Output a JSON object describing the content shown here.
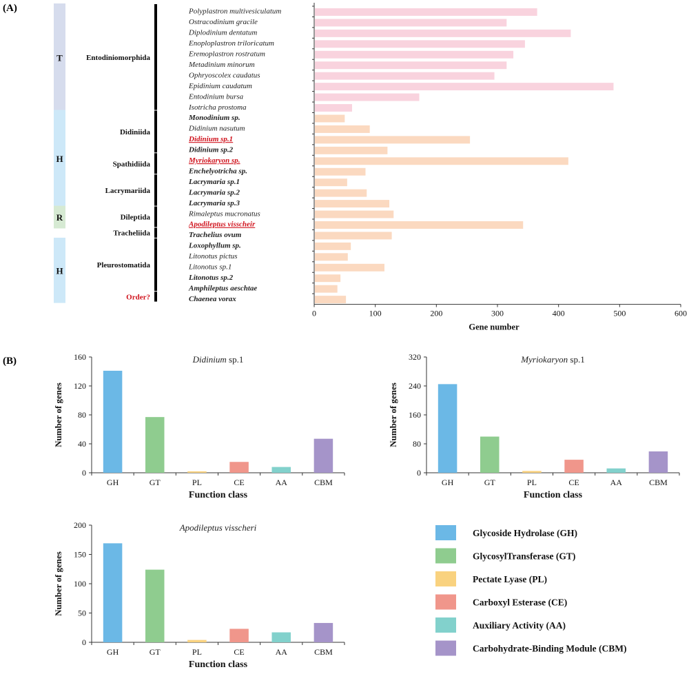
{
  "panel_labels": [
    "(A)",
    "(B)"
  ],
  "colors": {
    "axis": "#333333",
    "bar_rank_T": "#f9d3de",
    "bar_rank_H": "#fbd9c0",
    "bracket": "#000000",
    "highlight_red": "#d0121c",
    "group_T": "#d6dced",
    "group_H": "#cde8f8",
    "group_R": "#d6ead3"
  },
  "chart_data": [
    {
      "type": "bar",
      "orientation": "horizontal",
      "xlabel": "Gene number",
      "xlim": [
        0,
        600
      ],
      "xticks": [
        "0",
        "100",
        "200",
        "300",
        "400",
        "500",
        "600"
      ],
      "categories": [
        {
          "name": "Polyplastron multivesiculatum",
          "bold": false,
          "italic_parts": [
            "Polyplastron multivesiculatum"
          ],
          "red": false
        },
        {
          "name": "Ostracodinium gracile",
          "bold": false,
          "red": false
        },
        {
          "name": "Diplodinium dentatum",
          "bold": false,
          "red": false
        },
        {
          "name": "Enoploplastron triloricatum",
          "bold": false,
          "red": false
        },
        {
          "name": "Eremoplastron rostratum",
          "bold": false,
          "red": false
        },
        {
          "name": "Metadinium minorum",
          "bold": false,
          "red": false
        },
        {
          "name": "Ophryoscolex caudatus",
          "bold": false,
          "red": false
        },
        {
          "name": "Epidinium caudatum",
          "bold": false,
          "red": false
        },
        {
          "name": "Entodinium bursa",
          "bold": false,
          "red": false
        },
        {
          "name": "Isotricha prostoma",
          "bold": false,
          "red": false
        },
        {
          "name": "Monodinium sp.",
          "bold": true,
          "red": false
        },
        {
          "name": "Didinium nasutum",
          "bold": false,
          "red": false
        },
        {
          "name": "Didinium sp.1",
          "bold": true,
          "red": true
        },
        {
          "name": "Didinium sp.2",
          "bold": true,
          "red": false
        },
        {
          "name": "Myriokaryon sp.",
          "bold": true,
          "red": true
        },
        {
          "name": "Enchelyotricha sp.",
          "bold": true,
          "red": false
        },
        {
          "name": "Lacrymaria sp.1",
          "bold": true,
          "red": false
        },
        {
          "name": "Lacrymaria sp.2",
          "bold": true,
          "red": false
        },
        {
          "name": "Lacrymaria sp.3",
          "bold": true,
          "red": false
        },
        {
          "name": "Rimaleptus mucronatus",
          "bold": false,
          "red": false
        },
        {
          "name": "Apodileptus visscheir",
          "bold": true,
          "red": true
        },
        {
          "name": "Trachelius ovum",
          "bold": true,
          "red": false
        },
        {
          "name": "Loxophyllum sp.",
          "bold": true,
          "red": false
        },
        {
          "name": "Litonotus pictus",
          "bold": false,
          "red": false
        },
        {
          "name": "Litonotus sp.1",
          "bold": false,
          "red": false
        },
        {
          "name": "Litonotus sp.2",
          "bold": true,
          "red": false
        },
        {
          "name": "Amphileptus aeschtae",
          "bold": true,
          "red": false
        },
        {
          "name": "Chaenea vorax",
          "bold": true,
          "red": false
        }
      ],
      "values": [
        365,
        315,
        420,
        345,
        326,
        315,
        295,
        490,
        172,
        62,
        50,
        91,
        255,
        120,
        416,
        84,
        54,
        86,
        123,
        130,
        342,
        127,
        60,
        55,
        115,
        43,
        38,
        52
      ],
      "bar_rank_colors": [
        "T",
        "T",
        "T",
        "T",
        "T",
        "T",
        "T",
        "T",
        "T",
        "T",
        "H",
        "H",
        "H",
        "H",
        "H",
        "H",
        "H",
        "H",
        "H",
        "H",
        "H",
        "H",
        "H",
        "H",
        "H",
        "H",
        "H",
        "H"
      ],
      "orders": [
        {
          "label": "Entodiniomorphida",
          "from": 0,
          "to": 9,
          "red": false
        },
        {
          "label": "Didiniida",
          "from": 10,
          "to": 13,
          "red": false
        },
        {
          "label": "Spathidiida",
          "from": 14,
          "to": 15,
          "red": false
        },
        {
          "label": "Lacrymariida",
          "from": 16,
          "to": 18,
          "red": false
        },
        {
          "label": "Dileptida",
          "from": 19,
          "to": 20,
          "red": false
        },
        {
          "label": "Tracheliida",
          "from": 21,
          "to": 21,
          "red": false
        },
        {
          "label": "Pleurostomatida",
          "from": 22,
          "to": 26,
          "red": false
        },
        {
          "label": "Order?",
          "from": 27,
          "to": 27,
          "red": true
        }
      ],
      "groups": [
        {
          "label": "T",
          "from": 0,
          "to": 9,
          "color_key": "group_T"
        },
        {
          "label": "H",
          "from": 10,
          "to": 18,
          "color_key": "group_H"
        },
        {
          "label": "R",
          "from": 19,
          "to": 20,
          "color_key": "group_R"
        },
        {
          "label": "H",
          "from": 22,
          "to": 27,
          "color_key": "group_H"
        }
      ]
    },
    {
      "type": "bar",
      "title": "Didinium sp.1",
      "title_italic": "Didinium",
      "title_rest": " sp.1",
      "xlabel": "Function class",
      "ylabel": "Number of genes",
      "ylim": [
        0,
        160
      ],
      "yticks": [
        "0",
        "40",
        "80",
        "120",
        "160"
      ],
      "categories": [
        "GH",
        "GT",
        "PL",
        "CE",
        "AA",
        "CBM"
      ],
      "values": [
        141,
        77,
        2,
        15,
        8,
        47
      ]
    },
    {
      "type": "bar",
      "title": "Myriokaryon sp.1",
      "title_italic": "Myriokaryon",
      "title_rest": " sp.1",
      "xlabel": "Function class",
      "ylabel": "Number of genes",
      "ylim": [
        0,
        320
      ],
      "yticks": [
        "0",
        "80",
        "160",
        "240",
        "320"
      ],
      "categories": [
        "GH",
        "GT",
        "PL",
        "CE",
        "AA",
        "CBM"
      ],
      "values": [
        245,
        100,
        5,
        36,
        12,
        59
      ]
    },
    {
      "type": "bar",
      "title": "Apodileptus visscheri",
      "title_italic": "Apodileptus visscheri",
      "title_rest": "",
      "xlabel": "Function class",
      "ylabel": "Number of genes",
      "ylim": [
        0,
        200
      ],
      "yticks": [
        "0",
        "50",
        "100",
        "150",
        "200"
      ],
      "categories": [
        "GH",
        "GT",
        "PL",
        "CE",
        "AA",
        "CBM"
      ],
      "values": [
        169,
        124,
        4,
        23,
        17,
        33
      ]
    }
  ],
  "legend": [
    {
      "label": "Glycoside Hydrolase (GH)",
      "color": "#6bb8e6"
    },
    {
      "label": "GlycosylTransferase (GT)",
      "color": "#8fcc8f"
    },
    {
      "label": "Pectate Lyase (PL)",
      "color": "#f9d27f"
    },
    {
      "label": "Carboxyl Esterase (CE)",
      "color": "#f0968b"
    },
    {
      "label": "Auxiliary Activity (AA)",
      "color": "#82d1cc"
    },
    {
      "label": "Carbohydrate-Binding Module (CBM)",
      "color": "#a594c9"
    }
  ]
}
